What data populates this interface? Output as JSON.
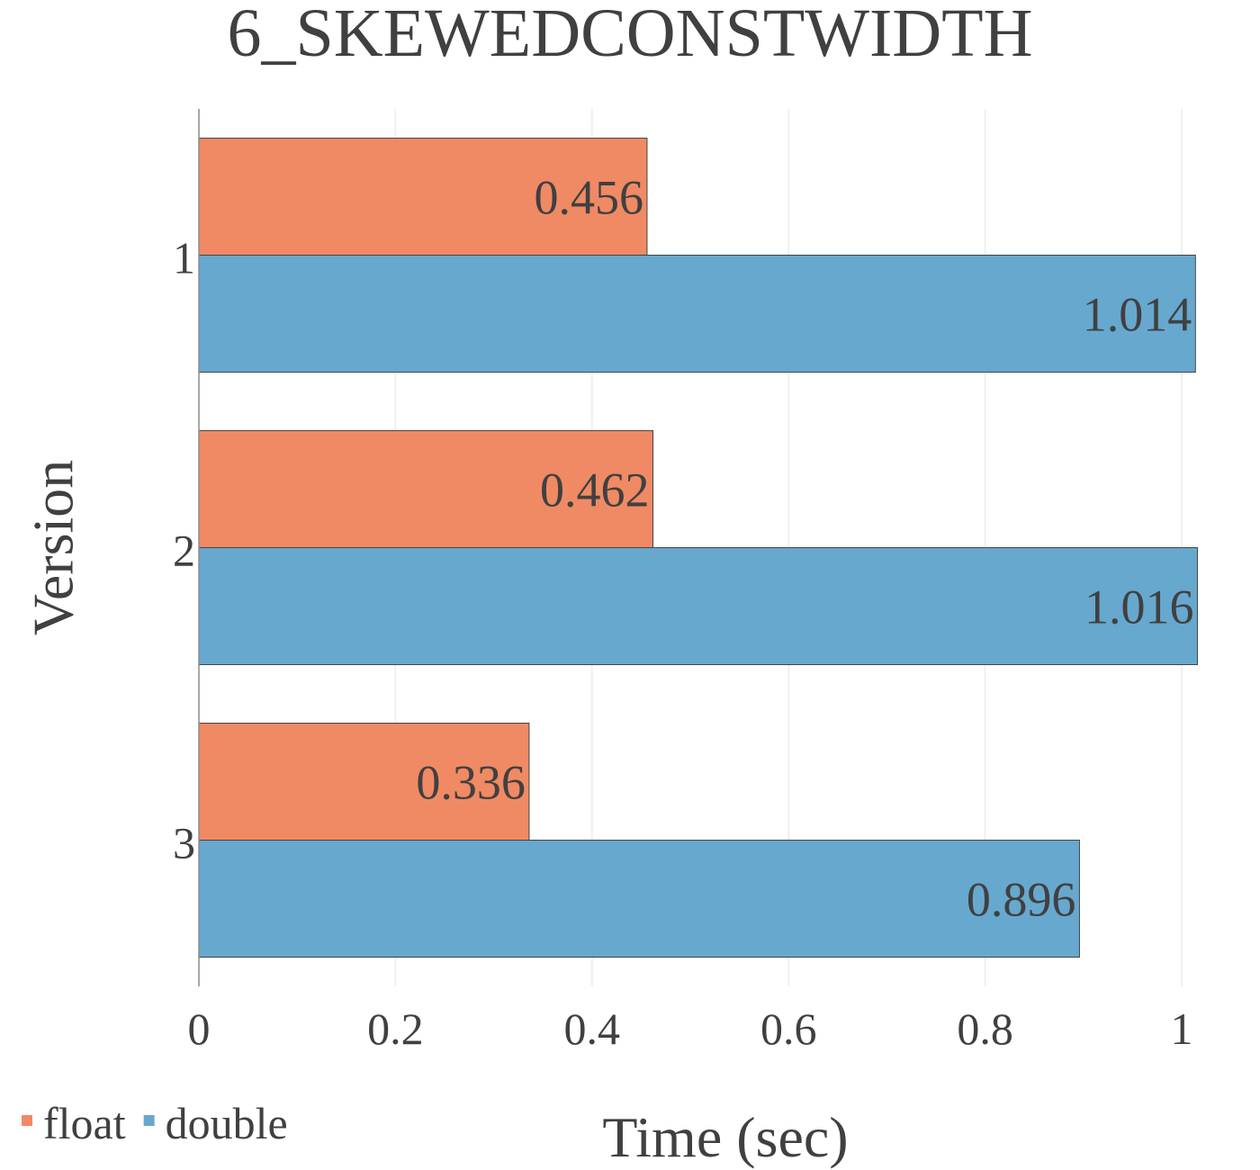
{
  "chart_data": {
    "type": "bar",
    "orientation": "horizontal",
    "title": "6_SKEWEDCONSTWIDTH",
    "xlabel": "Time (sec)",
    "ylabel": "Version",
    "categories": [
      "1",
      "2",
      "3"
    ],
    "series": [
      {
        "name": "float",
        "values": [
          0.456,
          0.462,
          0.336
        ],
        "color": "#F08A64"
      },
      {
        "name": "double",
        "values": [
          1.014,
          1.016,
          0.896
        ],
        "color": "#67A8CF"
      }
    ],
    "xlim": [
      0,
      1.0
    ],
    "x_ticks": [
      "0",
      "0.2",
      "0.4",
      "0.6",
      "0.8",
      "1"
    ],
    "grid": true,
    "legend": "bottom-left",
    "data_labels": true
  }
}
